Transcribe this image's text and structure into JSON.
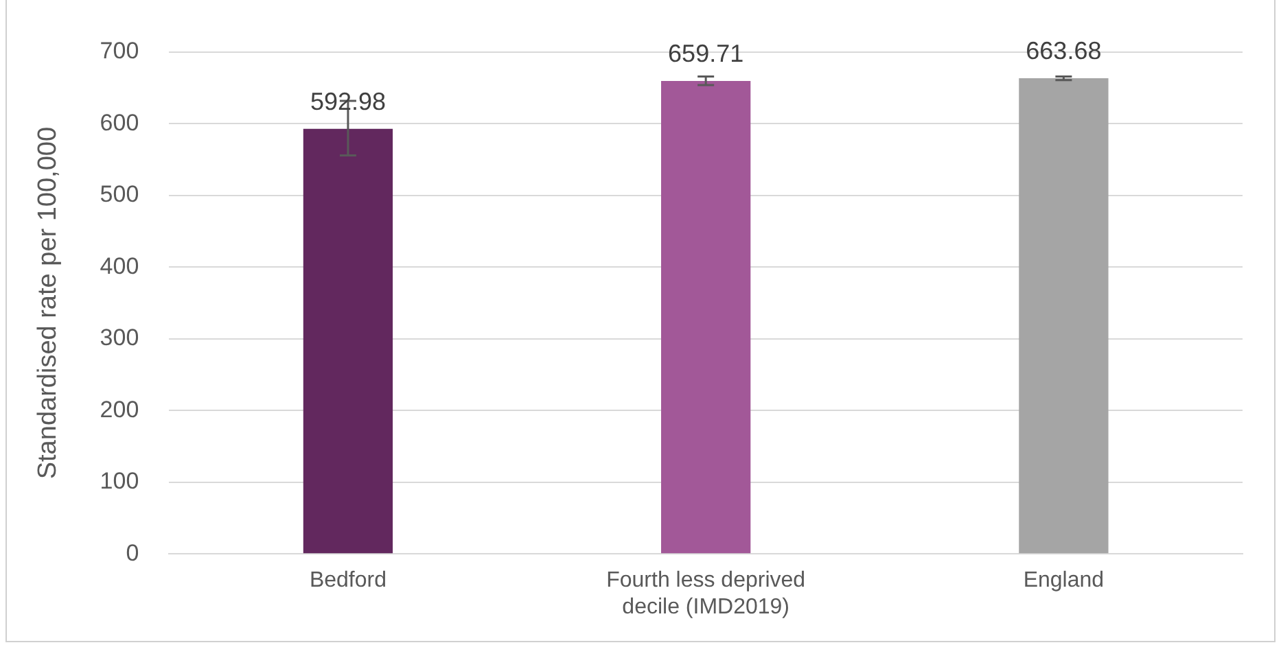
{
  "chart_data": {
    "type": "bar",
    "ylabel": "Standardised rate per 100,000",
    "categories": [
      "Bedford",
      "Fourth less deprived decile (IMD2019)",
      "England"
    ],
    "values": [
      592.98,
      659.71,
      663.68
    ],
    "colors": [
      "#62285e",
      "#a25898",
      "#a5a5a5"
    ],
    "errors": [
      [
        556,
        632
      ],
      [
        654,
        666
      ],
      [
        661,
        666
      ]
    ],
    "ylim": [
      0,
      700
    ],
    "yticks": [
      0,
      100,
      200,
      300,
      400,
      500,
      600,
      700
    ],
    "grid": "y",
    "legend": false,
    "data_labels": true
  }
}
